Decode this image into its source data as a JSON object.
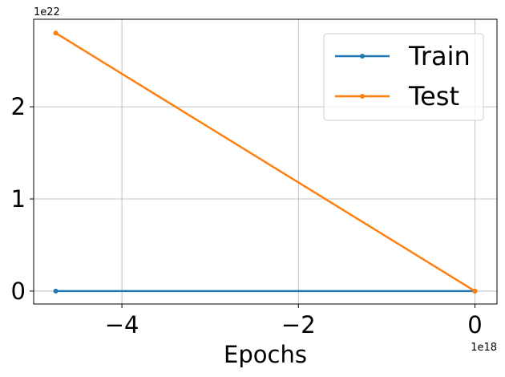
{
  "chart_data": {
    "type": "line",
    "title": "",
    "xlabel": "Epochs",
    "ylabel": "",
    "x_offset_label": "1e18",
    "y_offset_label": "1e22",
    "x_ticks": [
      -4,
      -2,
      0
    ],
    "x_tick_labels": [
      "−4",
      "−2",
      "0"
    ],
    "y_ticks": [
      0,
      1,
      2
    ],
    "y_tick_labels": [
      "0",
      "1",
      "2"
    ],
    "xlim": [
      -5e+18,
      2.5e+17
    ],
    "ylim": [
      -1.4e+21,
      2.95e+22
    ],
    "grid": true,
    "legend_position": "top-right",
    "series": [
      {
        "name": "Train",
        "color": "#1f77b4",
        "x": [
          -4.75e+18,
          0
        ],
        "y": [
          0,
          0
        ]
      },
      {
        "name": "Test",
        "color": "#ff7f0e",
        "x": [
          -4.75e+18,
          0
        ],
        "y": [
          2.8e+22,
          0
        ]
      }
    ]
  }
}
